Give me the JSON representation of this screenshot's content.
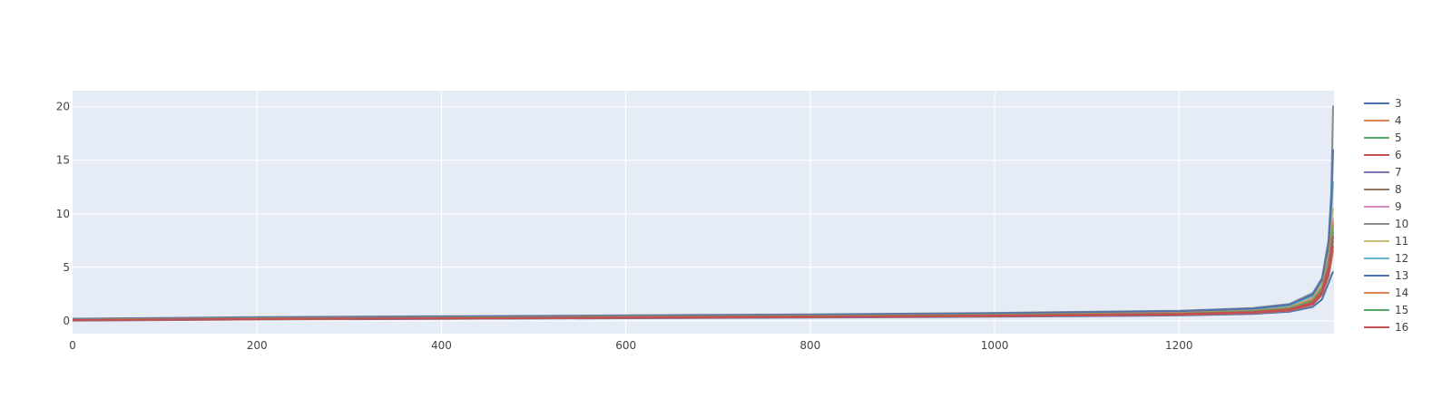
{
  "chart_data": {
    "type": "line",
    "title": "",
    "xlabel": "",
    "ylabel": "",
    "xlim": [
      0,
      1368
    ],
    "ylim": [
      -1.2,
      21.5
    ],
    "xticks": [
      0,
      200,
      400,
      600,
      800,
      1000,
      1200
    ],
    "yticks": [
      0,
      5,
      10,
      15,
      20
    ],
    "grid": true,
    "legend_placement": "right",
    "colors": {
      "plot_background": "#e5ecf6",
      "grid": "#ffffff"
    },
    "series": [
      {
        "name": "3",
        "color": "#4c72b0",
        "x": [
          0,
          200,
          400,
          600,
          800,
          1000,
          1200,
          1280,
          1320,
          1345,
          1355,
          1362,
          1365,
          1367
        ],
        "y": [
          0.02,
          0.12,
          0.18,
          0.24,
          0.3,
          0.38,
          0.5,
          0.65,
          0.85,
          1.3,
          2.0,
          3.5,
          4.2,
          4.6
        ]
      },
      {
        "name": "4",
        "color": "#dd8452",
        "x": [
          0,
          200,
          400,
          600,
          800,
          1000,
          1200,
          1280,
          1320,
          1345,
          1355,
          1362,
          1365,
          1367
        ],
        "y": [
          0.04,
          0.15,
          0.21,
          0.27,
          0.34,
          0.43,
          0.56,
          0.72,
          0.95,
          1.5,
          2.4,
          4.1,
          5.5,
          6.6
        ]
      },
      {
        "name": "5",
        "color": "#55a868",
        "x": [
          0,
          200,
          400,
          600,
          800,
          1000,
          1200,
          1280,
          1320,
          1345,
          1355,
          1362,
          1365,
          1367
        ],
        "y": [
          0.06,
          0.17,
          0.24,
          0.3,
          0.37,
          0.47,
          0.61,
          0.78,
          1.02,
          1.65,
          2.6,
          4.6,
          6.3,
          7.5
        ]
      },
      {
        "name": "6",
        "color": "#c44e52",
        "x": [
          0,
          200,
          400,
          600,
          800,
          1000,
          1200,
          1280,
          1320,
          1345,
          1355,
          1362,
          1365,
          1367
        ],
        "y": [
          0.05,
          0.16,
          0.22,
          0.28,
          0.35,
          0.44,
          0.58,
          0.74,
          0.98,
          1.55,
          2.5,
          4.3,
          5.9,
          7.0
        ]
      },
      {
        "name": "7",
        "color": "#8172b3",
        "x": [
          0,
          200,
          400,
          600,
          800,
          1000,
          1200,
          1280,
          1320,
          1345,
          1355,
          1362,
          1365,
          1367
        ],
        "y": [
          0.08,
          0.2,
          0.27,
          0.34,
          0.41,
          0.52,
          0.67,
          0.86,
          1.12,
          1.8,
          2.9,
          5.2,
          7.0,
          8.3
        ]
      },
      {
        "name": "8",
        "color": "#937860",
        "x": [
          0,
          200,
          400,
          600,
          800,
          1000,
          1200,
          1280,
          1320,
          1345,
          1355,
          1362,
          1365,
          1367
        ],
        "y": [
          0.1,
          0.23,
          0.3,
          0.37,
          0.45,
          0.56,
          0.72,
          0.92,
          1.2,
          1.95,
          3.1,
          5.6,
          7.6,
          9.0
        ]
      },
      {
        "name": "9",
        "color": "#da8bc3",
        "x": [
          0,
          200,
          400,
          600,
          800,
          1000,
          1200,
          1280,
          1320,
          1345,
          1355,
          1362,
          1365,
          1367
        ],
        "y": [
          0.12,
          0.25,
          0.33,
          0.4,
          0.48,
          0.6,
          0.77,
          0.98,
          1.28,
          2.1,
          3.3,
          6.0,
          8.2,
          9.6
        ]
      },
      {
        "name": "10",
        "color": "#8c8c8c",
        "x": [
          0,
          200,
          400,
          600,
          800,
          1000,
          1200,
          1280,
          1320,
          1345,
          1355,
          1362,
          1365,
          1367
        ],
        "y": [
          0.2,
          0.35,
          0.43,
          0.51,
          0.6,
          0.74,
          0.94,
          1.2,
          1.58,
          2.6,
          4.0,
          7.5,
          12.0,
          20.1
        ]
      },
      {
        "name": "11",
        "color": "#ccb974",
        "x": [
          0,
          200,
          400,
          600,
          800,
          1000,
          1200,
          1280,
          1320,
          1345,
          1355,
          1362,
          1365,
          1367
        ],
        "y": [
          0.14,
          0.27,
          0.35,
          0.43,
          0.51,
          0.63,
          0.81,
          1.03,
          1.35,
          2.2,
          3.5,
          6.4,
          9.0,
          10.5
        ]
      },
      {
        "name": "12",
        "color": "#64b5cd",
        "x": [
          0,
          200,
          400,
          600,
          800,
          1000,
          1200,
          1280,
          1320,
          1345,
          1355,
          1362,
          1365,
          1367
        ],
        "y": [
          0.16,
          0.29,
          0.37,
          0.45,
          0.54,
          0.66,
          0.85,
          1.08,
          1.42,
          2.3,
          3.7,
          6.8,
          10.0,
          13.0
        ]
      },
      {
        "name": "13",
        "color": "#4c72b0",
        "x": [
          0,
          200,
          400,
          600,
          800,
          1000,
          1200,
          1280,
          1320,
          1345,
          1355,
          1362,
          1365,
          1367
        ],
        "y": [
          0.18,
          0.32,
          0.4,
          0.48,
          0.57,
          0.7,
          0.9,
          1.14,
          1.5,
          2.45,
          3.85,
          7.1,
          11.0,
          16.0
        ]
      },
      {
        "name": "14",
        "color": "#dd8452",
        "x": [
          0,
          200,
          400,
          600,
          800,
          1000,
          1200,
          1280,
          1320,
          1345,
          1355,
          1362,
          1365,
          1367
        ],
        "y": [
          0.11,
          0.24,
          0.31,
          0.38,
          0.46,
          0.57,
          0.74,
          0.95,
          1.24,
          2.0,
          3.2,
          5.8,
          8.0,
          9.3
        ]
      },
      {
        "name": "15",
        "color": "#55a868",
        "x": [
          0,
          200,
          400,
          600,
          800,
          1000,
          1200,
          1280,
          1320,
          1345,
          1355,
          1362,
          1365,
          1367
        ],
        "y": [
          0.09,
          0.21,
          0.28,
          0.35,
          0.43,
          0.54,
          0.69,
          0.89,
          1.16,
          1.88,
          3.0,
          5.4,
          7.3,
          8.7
        ]
      },
      {
        "name": "16",
        "color": "#c44e52",
        "x": [
          0,
          200,
          400,
          600,
          800,
          1000,
          1200,
          1280,
          1320,
          1345,
          1355,
          1362,
          1365,
          1367
        ],
        "y": [
          0.07,
          0.18,
          0.25,
          0.32,
          0.39,
          0.49,
          0.64,
          0.82,
          1.07,
          1.72,
          2.75,
          4.9,
          6.6,
          7.9
        ]
      }
    ]
  }
}
